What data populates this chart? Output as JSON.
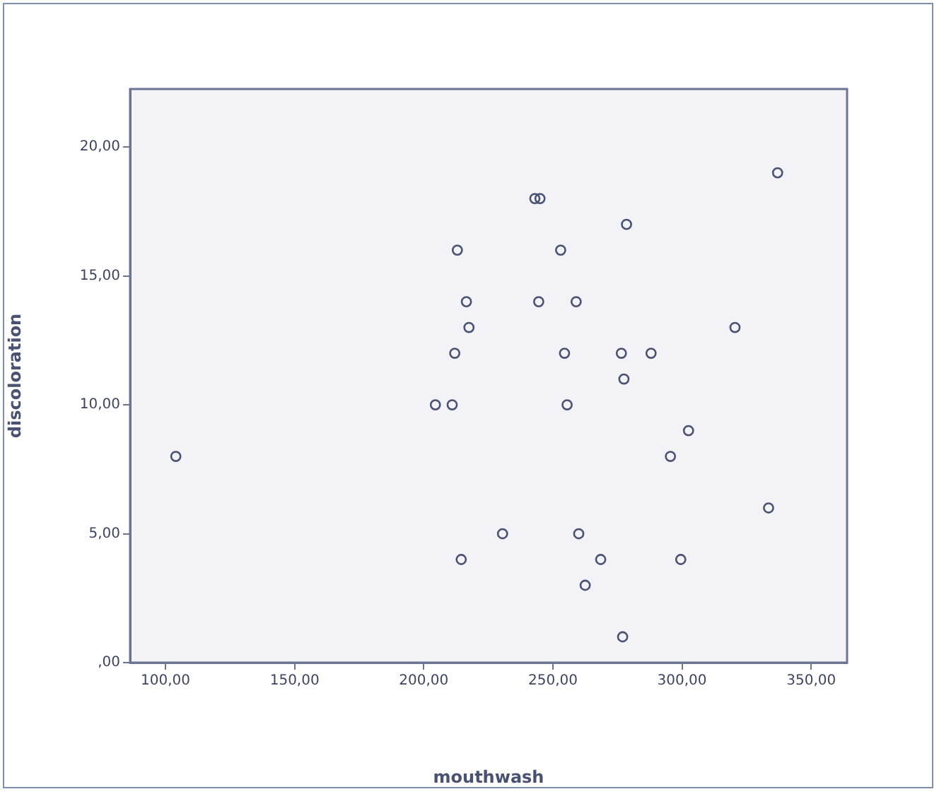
{
  "chart_data": {
    "type": "scatter",
    "xlabel": "mouthwash",
    "ylabel": "discoloration",
    "marker": "circle",
    "grid": false,
    "legend": false,
    "xlim": [
      86.3,
      363.9
    ],
    "ylim": [
      0,
      22.25
    ],
    "xticks": [
      {
        "value": 100,
        "label": "100,00"
      },
      {
        "value": 150,
        "label": "150,00"
      },
      {
        "value": 200,
        "label": "200,00"
      },
      {
        "value": 250,
        "label": "250,00"
      },
      {
        "value": 300,
        "label": "300,00"
      },
      {
        "value": 350,
        "label": "350,00"
      }
    ],
    "yticks": [
      {
        "value": 0,
        "label": ",00"
      },
      {
        "value": 5,
        "label": "5,00"
      },
      {
        "value": 10,
        "label": "10,00"
      },
      {
        "value": 15,
        "label": "15,00"
      },
      {
        "value": 20,
        "label": "20,00"
      }
    ],
    "series": [
      {
        "color": "#4a5272",
        "x": [
          104,
          213,
          216.5,
          217.5,
          212,
          204.5,
          211,
          214.5,
          337,
          243,
          245,
          278.5,
          253,
          244.5,
          259,
          320.5,
          254.5,
          276.5,
          288,
          277.5,
          255.5,
          302.5,
          295.5,
          333.5,
          230.5,
          260,
          268.5,
          299.5,
          262.5,
          277
        ],
        "values": [
          8,
          16,
          14,
          13,
          12,
          10,
          10,
          4,
          19,
          18,
          18,
          17,
          16,
          14,
          14,
          13,
          12,
          12,
          12,
          11,
          10,
          9,
          8,
          6,
          5,
          5,
          4,
          4,
          3,
          1
        ]
      }
    ]
  }
}
